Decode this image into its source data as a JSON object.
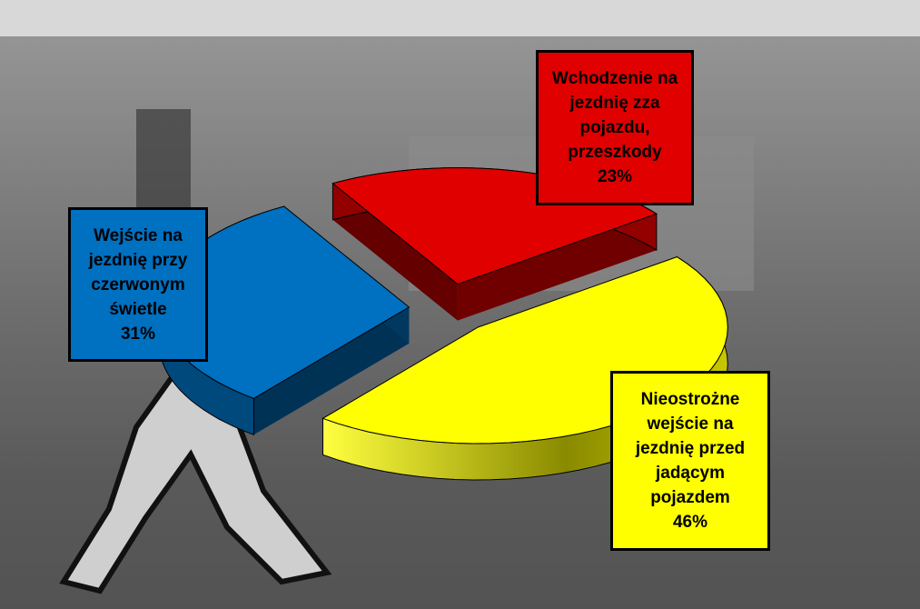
{
  "chart_data": {
    "type": "pie",
    "categories": [
      "Wchodzenie na jezdnię zza pojazdu, przeszkody",
      "Nieostrożne wejście na jezdnię przed jadącym pojazdem",
      "Wejście na jezdnię przy czerwonym świetle"
    ],
    "values": [
      23,
      46,
      31
    ],
    "value_labels": [
      "23%",
      "46%",
      "31%"
    ],
    "colors": [
      "#e00000",
      "#ffff00",
      "#0070c0"
    ]
  }
}
